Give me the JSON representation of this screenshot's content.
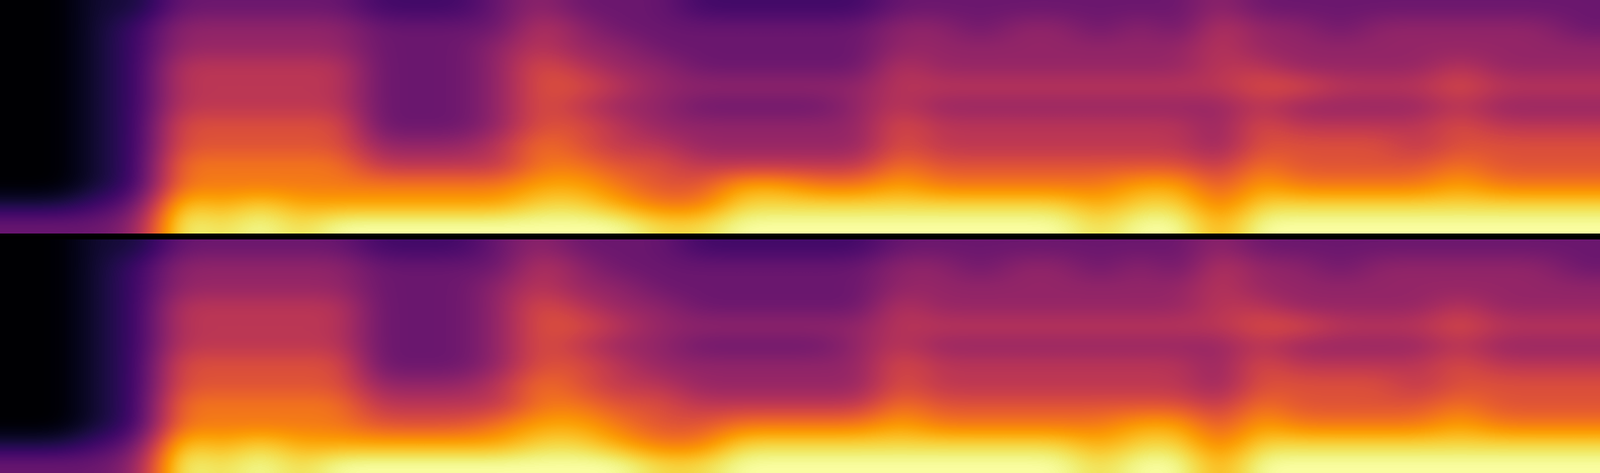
{
  "chart_data": [
    {
      "type": "heatmap",
      "color": "inferno",
      "tick_labels": false,
      "clim": [
        0,
        10
      ],
      "cells": [
        [
          0,
          0,
          1,
          1,
          3,
          3,
          3,
          3,
          3,
          2,
          2,
          2,
          3,
          4,
          3,
          3,
          3,
          2,
          2,
          2,
          2,
          2,
          3,
          3,
          3,
          3,
          3,
          3,
          3,
          3,
          4,
          3,
          3,
          3,
          3,
          3,
          3,
          3,
          3,
          3
        ],
        [
          0,
          0,
          1,
          2,
          4,
          4,
          4,
          4,
          4,
          3,
          3,
          3,
          3,
          5,
          4,
          3,
          3,
          3,
          3,
          3,
          3,
          3,
          4,
          4,
          3,
          4,
          4,
          3,
          4,
          3,
          5,
          4,
          4,
          3,
          4,
          4,
          4,
          4,
          4,
          3
        ],
        [
          0,
          0,
          1,
          2,
          4,
          4,
          4,
          4,
          4,
          3,
          3,
          3,
          4,
          5,
          4,
          4,
          3,
          3,
          3,
          3,
          3,
          3,
          4,
          4,
          4,
          4,
          4,
          4,
          4,
          4,
          5,
          4,
          4,
          4,
          4,
          4,
          4,
          4,
          4,
          4
        ],
        [
          0,
          0,
          1,
          2,
          5,
          5,
          5,
          5,
          5,
          3,
          3,
          3,
          4,
          6,
          5,
          4,
          4,
          3,
          3,
          3,
          3,
          3,
          5,
          4,
          4,
          4,
          4,
          4,
          4,
          4,
          5,
          5,
          4,
          4,
          4,
          4,
          5,
          4,
          4,
          4
        ],
        [
          0,
          0,
          1,
          2,
          5,
          5,
          5,
          5,
          5,
          3,
          3,
          3,
          4,
          6,
          6,
          5,
          4,
          4,
          4,
          4,
          4,
          4,
          5,
          5,
          5,
          5,
          5,
          5,
          5,
          5,
          5,
          6,
          6,
          5,
          5,
          5,
          6,
          5,
          5,
          5
        ],
        [
          0,
          0,
          1,
          2,
          5,
          5,
          5,
          5,
          5,
          3,
          3,
          3,
          4,
          6,
          5,
          4,
          4,
          3,
          3,
          3,
          3,
          4,
          5,
          4,
          4,
          4,
          4,
          4,
          4,
          4,
          4,
          5,
          4,
          4,
          4,
          4,
          5,
          4,
          4,
          4
        ],
        [
          0,
          0,
          1,
          2,
          6,
          6,
          6,
          6,
          6,
          3,
          3,
          3,
          4,
          6,
          6,
          5,
          4,
          4,
          4,
          4,
          4,
          4,
          6,
          5,
          5,
          5,
          5,
          5,
          5,
          5,
          4,
          6,
          5,
          5,
          5,
          5,
          6,
          5,
          5,
          5
        ],
        [
          0,
          0,
          1,
          2,
          6,
          6,
          6,
          6,
          6,
          4,
          4,
          4,
          5,
          7,
          6,
          5,
          5,
          4,
          4,
          4,
          4,
          4,
          6,
          5,
          5,
          5,
          5,
          5,
          5,
          5,
          4,
          6,
          6,
          6,
          6,
          5,
          6,
          6,
          6,
          6
        ],
        [
          0,
          0,
          1,
          2,
          7,
          7,
          7,
          7,
          7,
          5,
          5,
          5,
          5,
          7,
          7,
          6,
          6,
          5,
          5,
          5,
          5,
          5,
          7,
          6,
          6,
          6,
          6,
          6,
          6,
          6,
          5,
          7,
          6,
          6,
          6,
          6,
          7,
          6,
          6,
          6
        ],
        [
          0,
          0,
          1,
          2,
          7,
          7,
          7,
          7,
          7,
          7,
          7,
          7,
          7,
          8,
          8,
          7,
          6,
          6,
          8,
          8,
          7,
          7,
          8,
          7,
          7,
          7,
          7,
          7,
          8,
          8,
          6,
          8,
          7,
          7,
          7,
          7,
          8,
          7,
          7,
          7
        ],
        [
          1,
          1,
          2,
          3,
          9,
          8,
          9,
          8,
          8,
          8,
          8,
          8,
          8,
          9,
          9,
          8,
          7,
          7,
          9,
          9,
          9,
          9,
          9,
          9,
          9,
          9,
          9,
          8,
          9,
          9,
          7,
          9,
          9,
          9,
          9,
          9,
          9,
          9,
          9,
          9
        ],
        [
          3,
          3,
          3,
          4,
          10,
          9,
          10,
          9,
          10,
          10,
          10,
          10,
          10,
          10,
          10,
          10,
          9,
          9,
          10,
          10,
          10,
          10,
          10,
          10,
          10,
          10,
          10,
          9,
          10,
          10,
          8,
          10,
          10,
          10,
          10,
          10,
          10,
          10,
          10,
          10
        ]
      ]
    },
    {
      "type": "heatmap",
      "color": "inferno",
      "tick_labels": false,
      "clim": [
        0,
        10
      ],
      "cells": [
        [
          0,
          0,
          1,
          1,
          3,
          3,
          3,
          3,
          3,
          2,
          2,
          2,
          3,
          4,
          3,
          3,
          3,
          2,
          2,
          2,
          2,
          2,
          3,
          3,
          3,
          3,
          3,
          3,
          3,
          3,
          4,
          3,
          3,
          3,
          3,
          3,
          3,
          3,
          3,
          3
        ],
        [
          0,
          0,
          1,
          2,
          4,
          4,
          4,
          4,
          4,
          3,
          3,
          3,
          3,
          5,
          4,
          3,
          3,
          3,
          3,
          3,
          3,
          3,
          4,
          4,
          3,
          4,
          4,
          3,
          4,
          3,
          5,
          4,
          4,
          3,
          4,
          4,
          4,
          4,
          4,
          3
        ],
        [
          0,
          0,
          1,
          2,
          4,
          4,
          4,
          4,
          4,
          3,
          3,
          3,
          4,
          5,
          4,
          4,
          3,
          3,
          3,
          3,
          3,
          3,
          4,
          4,
          4,
          4,
          4,
          4,
          4,
          4,
          5,
          4,
          4,
          4,
          4,
          4,
          4,
          4,
          4,
          4
        ],
        [
          0,
          0,
          1,
          2,
          5,
          5,
          5,
          5,
          5,
          3,
          3,
          3,
          4,
          6,
          5,
          4,
          4,
          3,
          3,
          3,
          3,
          3,
          5,
          4,
          4,
          4,
          4,
          4,
          4,
          4,
          5,
          5,
          4,
          4,
          4,
          4,
          5,
          4,
          4,
          4
        ],
        [
          0,
          0,
          1,
          2,
          5,
          5,
          5,
          5,
          5,
          3,
          3,
          3,
          4,
          6,
          6,
          5,
          4,
          4,
          4,
          4,
          4,
          4,
          5,
          5,
          5,
          5,
          5,
          5,
          5,
          5,
          5,
          6,
          6,
          5,
          5,
          5,
          6,
          5,
          5,
          5
        ],
        [
          0,
          0,
          1,
          2,
          5,
          5,
          5,
          5,
          5,
          3,
          3,
          3,
          4,
          6,
          5,
          4,
          4,
          3,
          3,
          3,
          3,
          4,
          5,
          4,
          4,
          4,
          4,
          4,
          4,
          4,
          4,
          5,
          4,
          4,
          4,
          4,
          5,
          4,
          4,
          4
        ],
        [
          0,
          0,
          1,
          2,
          6,
          6,
          6,
          6,
          6,
          3,
          3,
          3,
          4,
          6,
          6,
          5,
          4,
          4,
          4,
          4,
          4,
          4,
          6,
          5,
          5,
          5,
          5,
          5,
          5,
          5,
          4,
          6,
          5,
          5,
          5,
          5,
          6,
          5,
          5,
          5
        ],
        [
          0,
          0,
          1,
          2,
          6,
          6,
          6,
          6,
          6,
          4,
          4,
          4,
          5,
          7,
          6,
          5,
          5,
          4,
          4,
          4,
          4,
          4,
          6,
          5,
          5,
          5,
          5,
          5,
          5,
          5,
          4,
          6,
          6,
          6,
          6,
          5,
          6,
          6,
          6,
          6
        ],
        [
          0,
          0,
          1,
          2,
          7,
          7,
          7,
          7,
          7,
          5,
          5,
          5,
          5,
          7,
          7,
          6,
          6,
          5,
          5,
          5,
          5,
          5,
          7,
          6,
          6,
          6,
          6,
          6,
          6,
          6,
          5,
          7,
          6,
          6,
          6,
          6,
          7,
          6,
          6,
          6
        ],
        [
          0,
          0,
          1,
          2,
          7,
          7,
          7,
          7,
          7,
          6,
          6,
          6,
          7,
          8,
          8,
          7,
          6,
          6,
          7,
          7,
          7,
          7,
          8,
          7,
          7,
          7,
          7,
          7,
          8,
          8,
          6,
          8,
          7,
          7,
          7,
          7,
          8,
          7,
          7,
          7
        ],
        [
          1,
          1,
          2,
          3,
          9,
          8,
          9,
          8,
          8,
          8,
          8,
          8,
          8,
          9,
          9,
          8,
          7,
          7,
          9,
          9,
          9,
          9,
          9,
          9,
          9,
          9,
          9,
          8,
          9,
          9,
          7,
          9,
          9,
          9,
          9,
          9,
          9,
          9,
          9,
          9
        ],
        [
          3,
          3,
          3,
          4,
          10,
          9,
          10,
          9,
          10,
          10,
          10,
          10,
          10,
          10,
          10,
          10,
          9,
          9,
          10,
          10,
          10,
          10,
          10,
          10,
          10,
          10,
          10,
          9,
          10,
          10,
          8,
          10,
          10,
          10,
          10,
          10,
          10,
          10,
          10,
          10
        ]
      ]
    }
  ]
}
